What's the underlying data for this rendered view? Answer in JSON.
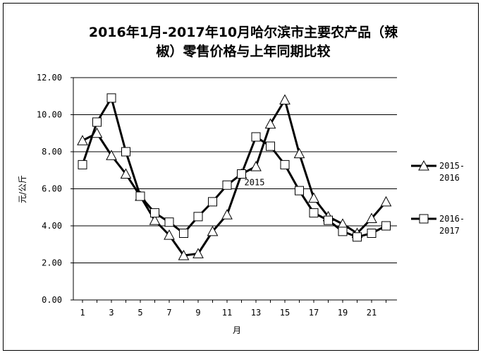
{
  "chart_data": {
    "type": "line",
    "title_line1": "2016年1月-2017年10月哈尔滨市主要农产品（辣",
    "title_line2": "椒）零售价格与上年同期比较",
    "xlabel": "月",
    "ylabel": "元/公斤",
    "ylim": [
      0,
      12
    ],
    "yticks": [
      "0.00",
      "2.00",
      "4.00",
      "6.00",
      "8.00",
      "10.00",
      "12.00"
    ],
    "x": [
      1,
      2,
      3,
      4,
      5,
      6,
      7,
      8,
      9,
      10,
      11,
      12,
      13,
      14,
      15,
      16,
      17,
      18,
      19,
      20,
      21,
      22
    ],
    "xticks": [
      "1",
      "3",
      "5",
      "7",
      "9",
      "11",
      "13",
      "15",
      "17",
      "19",
      "21"
    ],
    "grid": true,
    "legend_position": "right",
    "annotation": "2015",
    "series": [
      {
        "name": "2015-2016",
        "legend_line1": "2015-",
        "legend_line2": "2016",
        "marker": "triangle",
        "values": [
          8.6,
          9.0,
          7.8,
          6.8,
          5.6,
          4.3,
          3.5,
          2.4,
          2.5,
          3.7,
          4.6,
          6.8,
          7.2,
          9.5,
          10.8,
          7.9,
          5.5,
          4.5,
          4.1,
          3.6,
          4.4,
          5.3
        ]
      },
      {
        "name": "2016-2017",
        "legend_line1": "2016-",
        "legend_line2": "2017",
        "marker": "square",
        "values": [
          7.3,
          9.6,
          10.9,
          8.0,
          5.6,
          4.7,
          4.2,
          3.6,
          4.5,
          5.3,
          6.2,
          6.8,
          8.8,
          8.3,
          7.3,
          5.9,
          4.7,
          4.3,
          3.7,
          3.4,
          3.6,
          4.0
        ]
      }
    ]
  }
}
